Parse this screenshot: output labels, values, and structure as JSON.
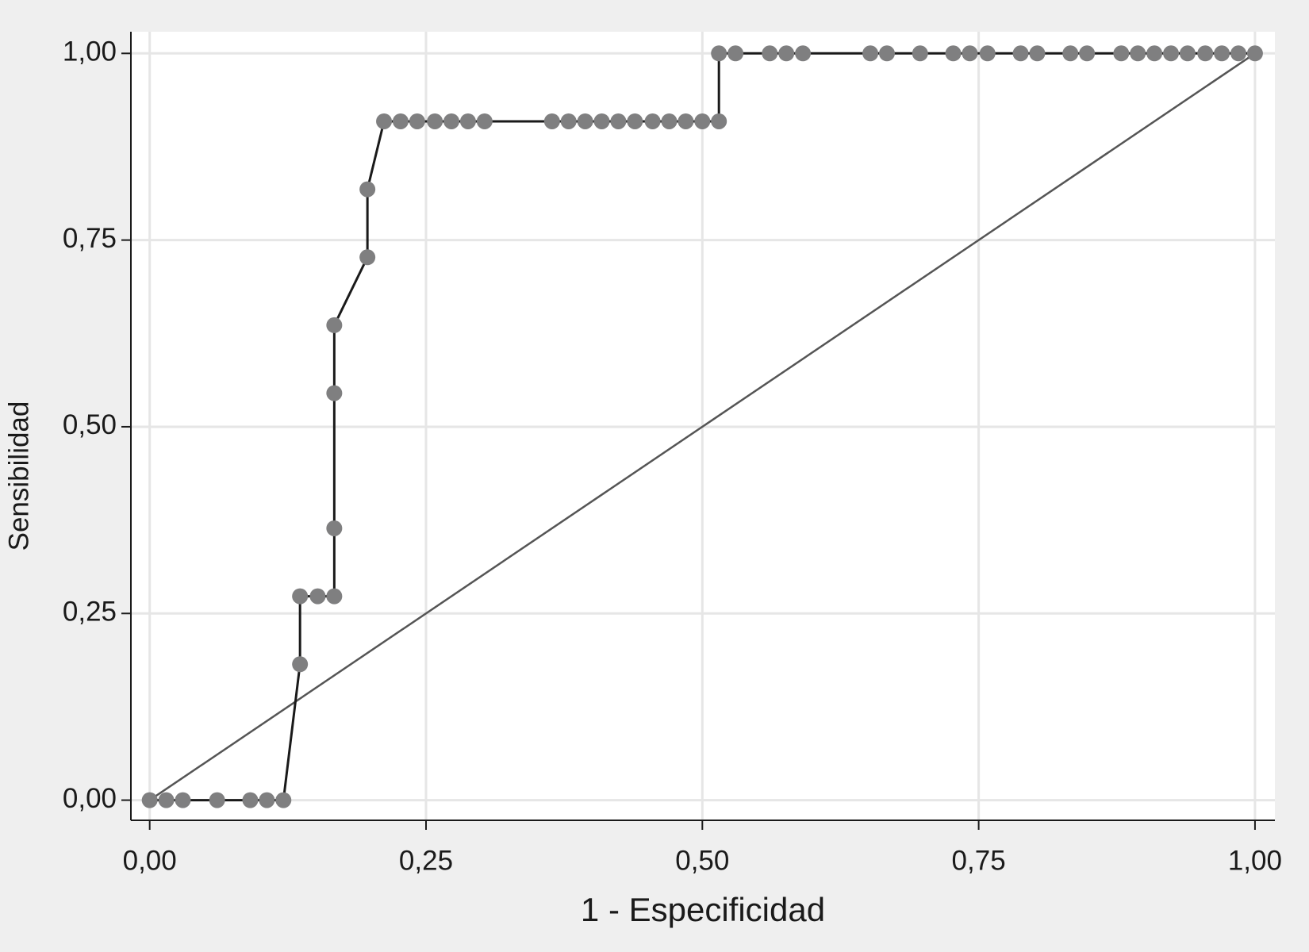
{
  "chart_data": {
    "type": "line",
    "x_label": "1 - Especificidad",
    "y_label": "Sensibilidad",
    "xlim": [
      -0.017,
      1.018
    ],
    "ylim": [
      -0.027,
      1.029
    ],
    "xticks": [
      {
        "value": 0,
        "label": "0,00"
      },
      {
        "value": 0.25,
        "label": "0,25"
      },
      {
        "value": 0.5,
        "label": "0,50"
      },
      {
        "value": 0.75,
        "label": "0,75"
      },
      {
        "value": 1,
        "label": "1,00"
      }
    ],
    "yticks": [
      {
        "value": 0,
        "label": "0,00"
      },
      {
        "value": 0.25,
        "label": "0,25"
      },
      {
        "value": 0.5,
        "label": "0,50"
      },
      {
        "value": 0.75,
        "label": "0,75"
      },
      {
        "value": 1,
        "label": "1,00"
      }
    ],
    "grid": true,
    "series": [
      {
        "color": "#1a1a1a",
        "marker_color": "#7f7f80",
        "markers": true,
        "x": [
          0,
          0.015,
          0.03,
          0.061,
          0.091,
          0.106,
          0.121,
          0.136,
          0.136,
          0.152,
          0.167,
          0.167,
          0.167,
          0.167,
          0.197,
          0.197,
          0.212,
          0.227,
          0.242,
          0.258,
          0.273,
          0.288,
          0.303,
          0.364,
          0.379,
          0.394,
          0.409,
          0.424,
          0.439,
          0.455,
          0.47,
          0.485,
          0.5,
          0.515,
          0.515,
          0.53,
          0.561,
          0.576,
          0.591,
          0.652,
          0.667,
          0.697,
          0.727,
          0.742,
          0.758,
          0.788,
          0.803,
          0.833,
          0.848,
          0.879,
          0.894,
          0.909,
          0.924,
          0.939,
          0.955,
          0.97,
          0.985,
          1
        ],
        "values": [
          0,
          0,
          0,
          0,
          0,
          0,
          0,
          0.182,
          0.273,
          0.273,
          0.273,
          0.364,
          0.545,
          0.636,
          0.727,
          0.818,
          0.909,
          0.909,
          0.909,
          0.909,
          0.909,
          0.909,
          0.909,
          0.909,
          0.909,
          0.909,
          0.909,
          0.909,
          0.909,
          0.909,
          0.909,
          0.909,
          0.909,
          0.909,
          1,
          1,
          1,
          1,
          1,
          1,
          1,
          1,
          1,
          1,
          1,
          1,
          1,
          1,
          1,
          1,
          1,
          1,
          1,
          1,
          1,
          1,
          1,
          1
        ]
      },
      {
        "color": "#555555",
        "markers": false,
        "x": [
          0,
          1
        ],
        "values": [
          0,
          1
        ]
      }
    ]
  }
}
